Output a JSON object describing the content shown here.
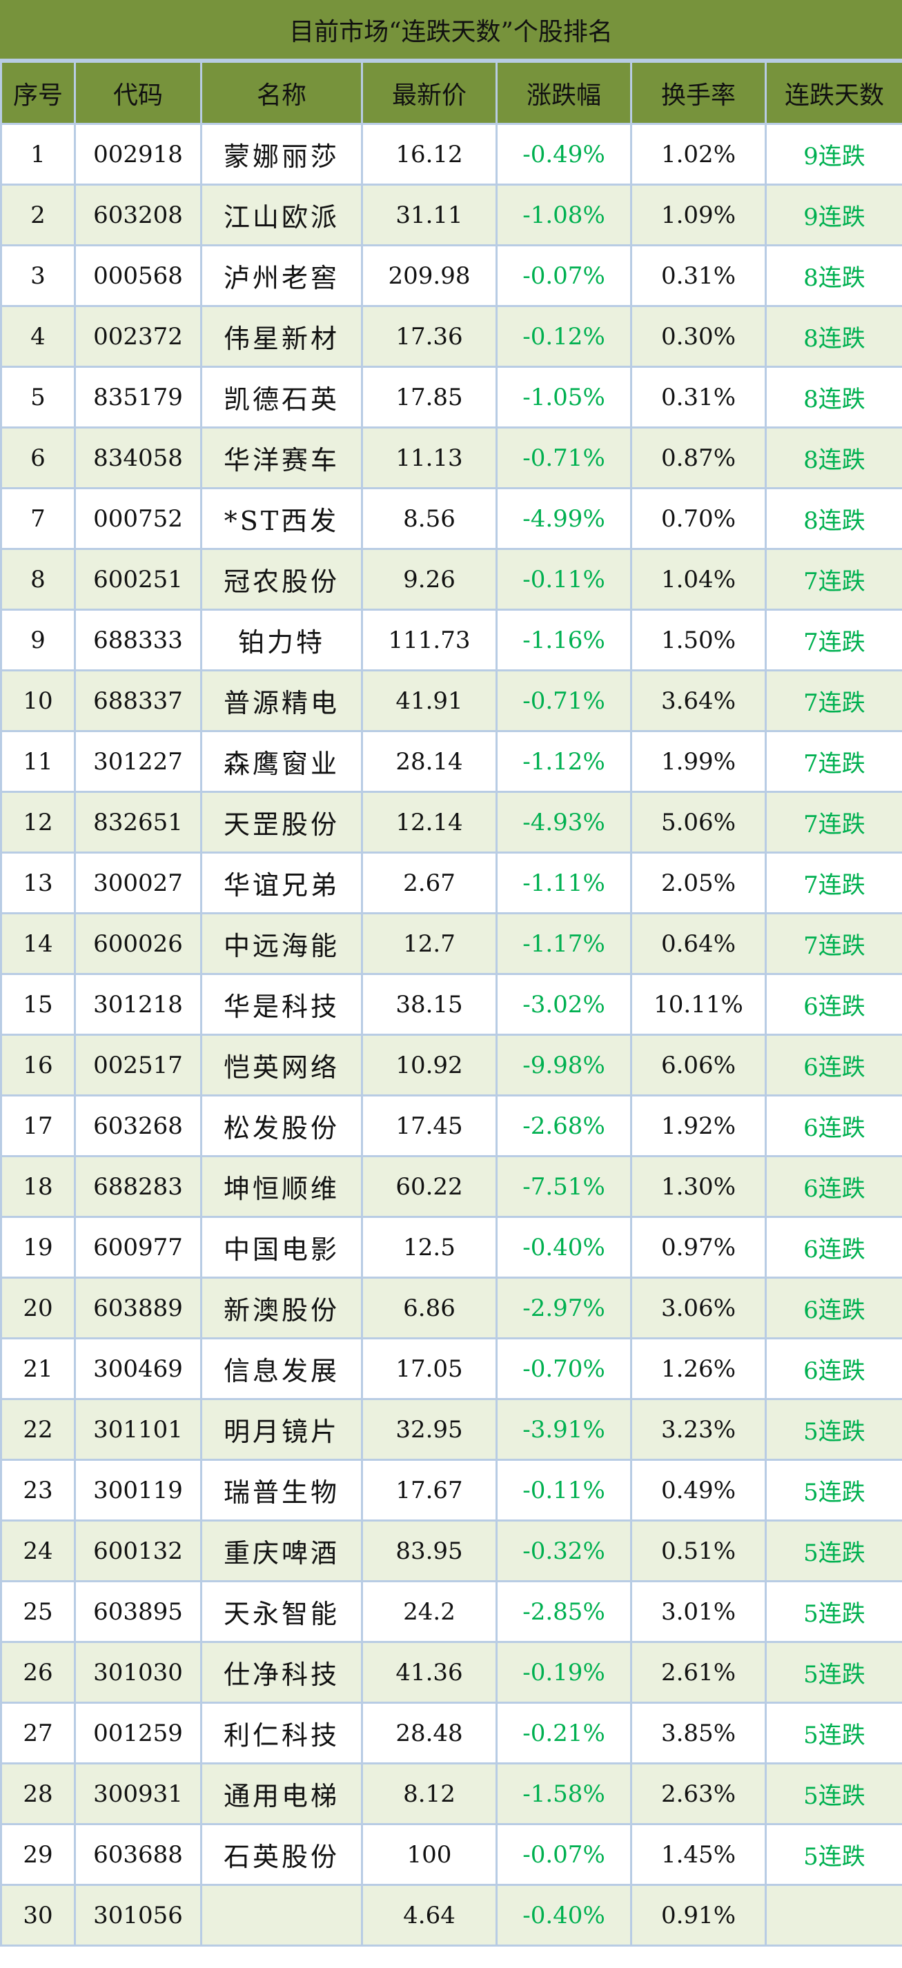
{
  "title": "目前市场“连跌天数”个股排名",
  "columns": [
    "序号",
    "代码",
    "名称",
    "最新价",
    "涨跌幅",
    "换手率",
    "连跌天数"
  ],
  "colors": {
    "header_bg": "#77933c",
    "alt_row_bg": "#ebf1de",
    "border": "#b8cce4",
    "down_text": "#00b050"
  },
  "rows": [
    [
      "1",
      "002918",
      "蒙娜丽莎",
      "16.12",
      "-0.49%",
      "1.02%",
      "9连跌"
    ],
    [
      "2",
      "603208",
      "江山欧派",
      "31.11",
      "-1.08%",
      "1.09%",
      "9连跌"
    ],
    [
      "3",
      "000568",
      "泸州老窖",
      "209.98",
      "-0.07%",
      "0.31%",
      "8连跌"
    ],
    [
      "4",
      "002372",
      "伟星新材",
      "17.36",
      "-0.12%",
      "0.30%",
      "8连跌"
    ],
    [
      "5",
      "835179",
      "凯德石英",
      "17.85",
      "-1.05%",
      "0.31%",
      "8连跌"
    ],
    [
      "6",
      "834058",
      "华洋赛车",
      "11.13",
      "-0.71%",
      "0.87%",
      "8连跌"
    ],
    [
      "7",
      "000752",
      "*ST西发",
      "8.56",
      "-4.99%",
      "0.70%",
      "8连跌"
    ],
    [
      "8",
      "600251",
      "冠农股份",
      "9.26",
      "-0.11%",
      "1.04%",
      "7连跌"
    ],
    [
      "9",
      "688333",
      "铂力特",
      "111.73",
      "-1.16%",
      "1.50%",
      "7连跌"
    ],
    [
      "10",
      "688337",
      "普源精电",
      "41.91",
      "-0.71%",
      "3.64%",
      "7连跌"
    ],
    [
      "11",
      "301227",
      "森鹰窗业",
      "28.14",
      "-1.12%",
      "1.99%",
      "7连跌"
    ],
    [
      "12",
      "832651",
      "天罡股份",
      "12.14",
      "-4.93%",
      "5.06%",
      "7连跌"
    ],
    [
      "13",
      "300027",
      "华谊兄弟",
      "2.67",
      "-1.11%",
      "2.05%",
      "7连跌"
    ],
    [
      "14",
      "600026",
      "中远海能",
      "12.7",
      "-1.17%",
      "0.64%",
      "7连跌"
    ],
    [
      "15",
      "301218",
      "华是科技",
      "38.15",
      "-3.02%",
      "10.11%",
      "6连跌"
    ],
    [
      "16",
      "002517",
      "恺英网络",
      "10.92",
      "-9.98%",
      "6.06%",
      "6连跌"
    ],
    [
      "17",
      "603268",
      "松发股份",
      "17.45",
      "-2.68%",
      "1.92%",
      "6连跌"
    ],
    [
      "18",
      "688283",
      "坤恒顺维",
      "60.22",
      "-7.51%",
      "1.30%",
      "6连跌"
    ],
    [
      "19",
      "600977",
      "中国电影",
      "12.5",
      "-0.40%",
      "0.97%",
      "6连跌"
    ],
    [
      "20",
      "603889",
      "新澳股份",
      "6.86",
      "-2.97%",
      "3.06%",
      "6连跌"
    ],
    [
      "21",
      "300469",
      "信息发展",
      "17.05",
      "-0.70%",
      "1.26%",
      "6连跌"
    ],
    [
      "22",
      "301101",
      "明月镜片",
      "32.95",
      "-3.91%",
      "3.23%",
      "5连跌"
    ],
    [
      "23",
      "300119",
      "瑞普生物",
      "17.67",
      "-0.11%",
      "0.49%",
      "5连跌"
    ],
    [
      "24",
      "600132",
      "重庆啤酒",
      "83.95",
      "-0.32%",
      "0.51%",
      "5连跌"
    ],
    [
      "25",
      "603895",
      "天永智能",
      "24.2",
      "-2.85%",
      "3.01%",
      "5连跌"
    ],
    [
      "26",
      "301030",
      "仕净科技",
      "41.36",
      "-0.19%",
      "2.61%",
      "5连跌"
    ],
    [
      "27",
      "001259",
      "利仁科技",
      "28.48",
      "-0.21%",
      "3.85%",
      "5连跌"
    ],
    [
      "28",
      "300931",
      "通用电梯",
      "8.12",
      "-1.58%",
      "2.63%",
      "5连跌"
    ],
    [
      "29",
      "603688",
      "石英股份",
      "100",
      "-0.07%",
      "1.45%",
      "5连跌"
    ],
    [
      "30",
      "301056",
      "",
      "4.64",
      "-0.40%",
      "0.91%",
      ""
    ]
  ]
}
